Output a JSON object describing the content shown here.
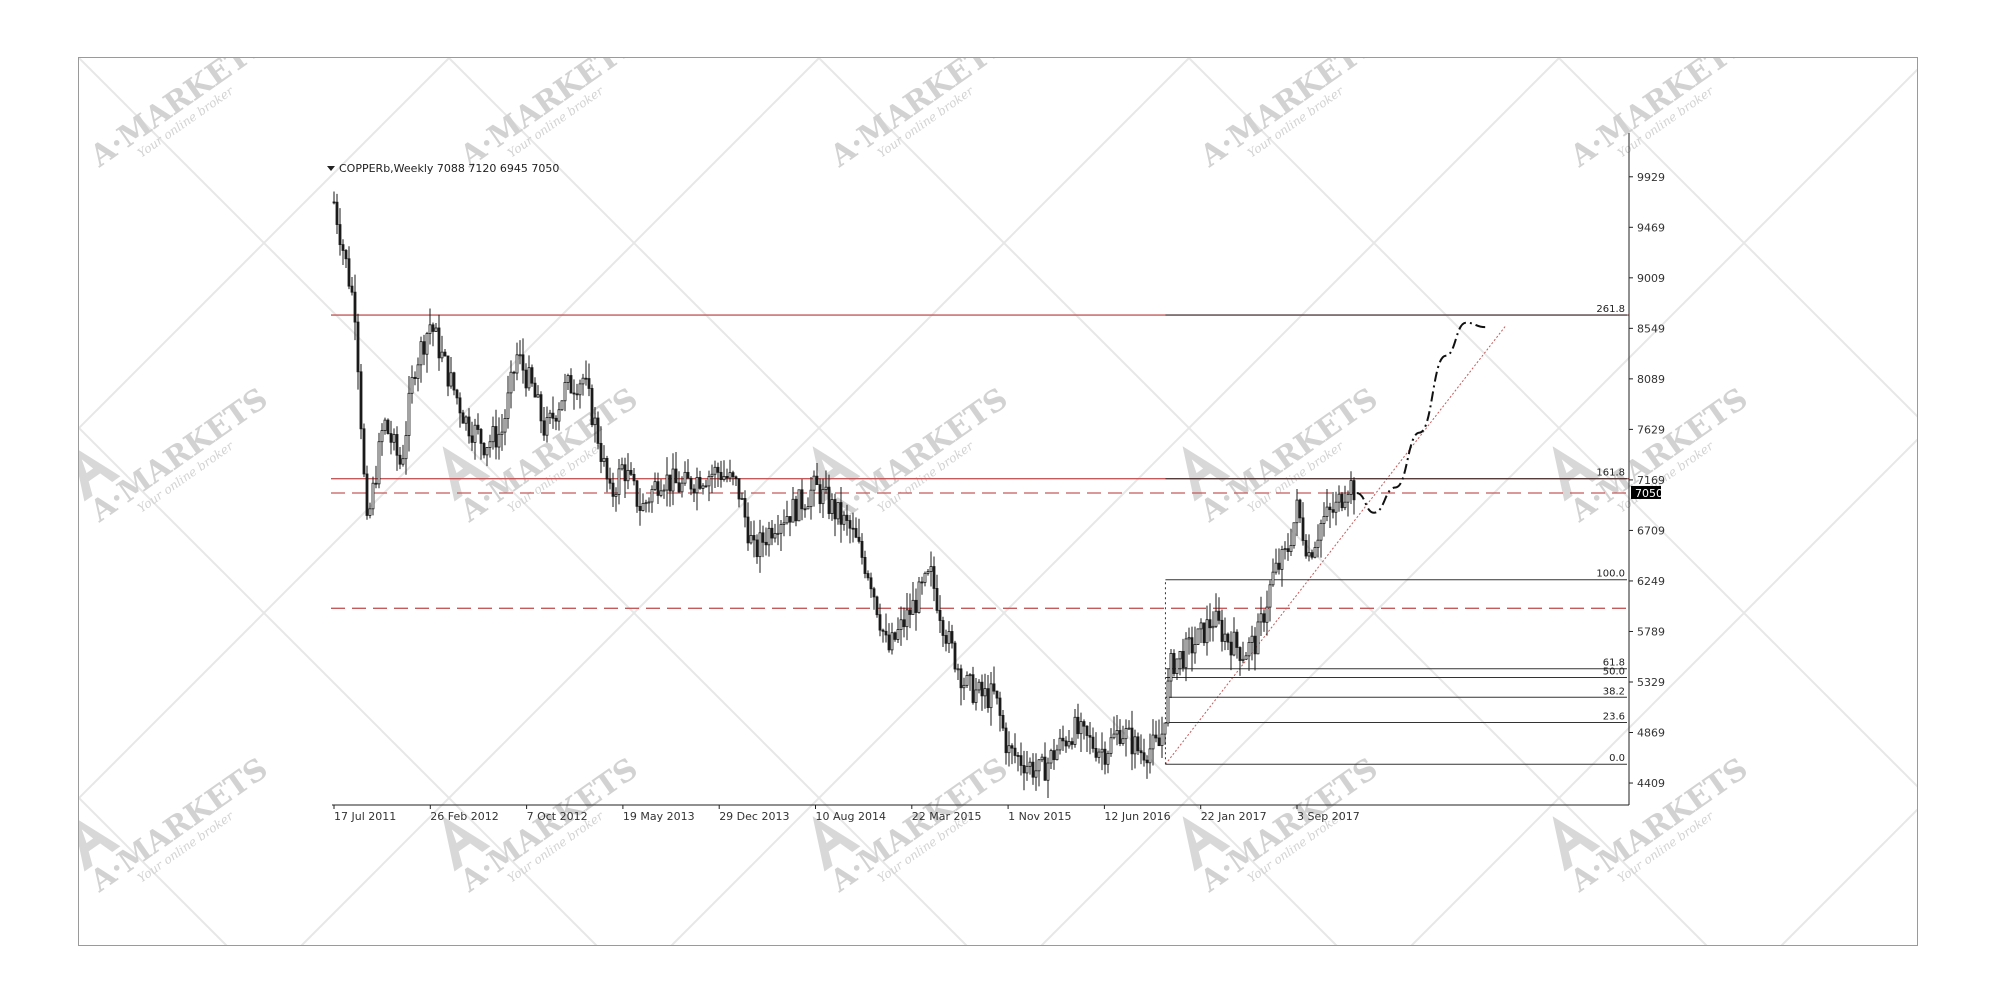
{
  "chart_data": {
    "type": "candlestick",
    "title": "COPPERb,Weekly  7088 7120 6945 7050",
    "instrument": "COPPERb",
    "timeframe": "Weekly",
    "last_bar": {
      "open": 7088,
      "high": 7120,
      "low": 6945,
      "close": 7050
    },
    "current_price": "7050",
    "x_tick_labels": [
      "17 Jul 2011",
      "26 Feb 2012",
      "7 Oct 2012",
      "19 May 2013",
      "29 Dec 2013",
      "10 Aug 2014",
      "22 Mar 2015",
      "1 Nov 2015",
      "12 Jun 2016",
      "22 Jan 2017",
      "3 Sep 2017"
    ],
    "y_tick_labels": [
      "9929",
      "9469",
      "9009",
      "8549",
      "8089",
      "7629",
      "7169",
      "6709",
      "6249",
      "5789",
      "5329",
      "4869",
      "4409"
    ],
    "ylim": [
      4300,
      10100
    ],
    "y_position": "right",
    "price_path": [
      {
        "date": "2011-07-17",
        "value": 9700
      },
      {
        "date": "2011-09-05",
        "value": 8700
      },
      {
        "date": "2011-10-01",
        "value": 6700
      },
      {
        "date": "2011-11-10",
        "value": 7700
      },
      {
        "date": "2011-12-20",
        "value": 7300
      },
      {
        "date": "2012-01-20",
        "value": 8200
      },
      {
        "date": "2012-02-26",
        "value": 8600
      },
      {
        "date": "2012-04-10",
        "value": 8100
      },
      {
        "date": "2012-05-20",
        "value": 7700
      },
      {
        "date": "2012-07-01",
        "value": 7500
      },
      {
        "date": "2012-08-10",
        "value": 7600
      },
      {
        "date": "2012-09-15",
        "value": 8300
      },
      {
        "date": "2012-10-20",
        "value": 8000
      },
      {
        "date": "2012-11-20",
        "value": 7600
      },
      {
        "date": "2013-01-05",
        "value": 8000
      },
      {
        "date": "2013-02-15",
        "value": 8100
      },
      {
        "date": "2013-03-20",
        "value": 7600
      },
      {
        "date": "2013-04-20",
        "value": 7000
      },
      {
        "date": "2013-05-19",
        "value": 7300
      },
      {
        "date": "2013-07-01",
        "value": 6900
      },
      {
        "date": "2013-08-15",
        "value": 7200
      },
      {
        "date": "2013-10-01",
        "value": 7100
      },
      {
        "date": "2013-11-15",
        "value": 7200
      },
      {
        "date": "2013-12-29",
        "value": 7250
      },
      {
        "date": "2014-02-10",
        "value": 7100
      },
      {
        "date": "2014-03-20",
        "value": 6500
      },
      {
        "date": "2014-05-10",
        "value": 6800
      },
      {
        "date": "2014-06-20",
        "value": 6900
      },
      {
        "date": "2014-08-10",
        "value": 7100
      },
      {
        "date": "2014-09-20",
        "value": 6900
      },
      {
        "date": "2014-11-01",
        "value": 6700
      },
      {
        "date": "2014-12-15",
        "value": 6300
      },
      {
        "date": "2015-01-25",
        "value": 5600
      },
      {
        "date": "2015-03-22",
        "value": 6000
      },
      {
        "date": "2015-05-05",
        "value": 6300
      },
      {
        "date": "2015-06-15",
        "value": 5700
      },
      {
        "date": "2015-07-25",
        "value": 5300
      },
      {
        "date": "2015-09-01",
        "value": 5200
      },
      {
        "date": "2015-10-01",
        "value": 5200
      },
      {
        "date": "2015-11-01",
        "value": 4700
      },
      {
        "date": "2015-12-10",
        "value": 4600
      },
      {
        "date": "2016-01-15",
        "value": 4500
      },
      {
        "date": "2016-02-20",
        "value": 4700
      },
      {
        "date": "2016-04-01",
        "value": 4900
      },
      {
        "date": "2016-05-01",
        "value": 4800
      },
      {
        "date": "2016-06-12",
        "value": 4700
      },
      {
        "date": "2016-07-20",
        "value": 4900
      },
      {
        "date": "2016-09-01",
        "value": 4700
      },
      {
        "date": "2016-10-20",
        "value": 4750
      },
      {
        "date": "2016-11-15",
        "value": 5500
      },
      {
        "date": "2016-12-20",
        "value": 5600
      },
      {
        "date": "2017-01-22",
        "value": 5750
      },
      {
        "date": "2017-02-20",
        "value": 5900
      },
      {
        "date": "2017-03-20",
        "value": 5750
      },
      {
        "date": "2017-05-01",
        "value": 5600
      },
      {
        "date": "2017-06-01",
        "value": 5700
      },
      {
        "date": "2017-07-10",
        "value": 6300
      },
      {
        "date": "2017-08-10",
        "value": 6500
      },
      {
        "date": "2017-09-03",
        "value": 6900
      },
      {
        "date": "2017-10-01",
        "value": 6500
      },
      {
        "date": "2017-11-01",
        "value": 6800
      },
      {
        "date": "2017-12-01",
        "value": 6900
      },
      {
        "date": "2018-01-01",
        "value": 7150
      },
      {
        "date": "2018-01-20",
        "value": 7050
      }
    ],
    "forecast_path": [
      {
        "date": "2018-01-20",
        "value": 7050
      },
      {
        "date": "2018-03-01",
        "value": 6870
      },
      {
        "date": "2018-04-20",
        "value": 7100
      },
      {
        "date": "2018-06-15",
        "value": 7600
      },
      {
        "date": "2018-08-15",
        "value": 8300
      },
      {
        "date": "2018-10-01",
        "value": 8600
      },
      {
        "date": "2018-11-15",
        "value": 8560
      }
    ],
    "horizontal_levels": [
      {
        "value": 8670,
        "color": "#c45a5a",
        "style": "solid"
      },
      {
        "value": 7180,
        "color": "#c45a5a",
        "style": "solid"
      },
      {
        "value": 7050,
        "color": "#c45a5a",
        "style": "dashed"
      },
      {
        "value": 6000,
        "color": "#c45a5a",
        "style": "dashed"
      }
    ],
    "fibonacci_levels": [
      {
        "label": "261.8",
        "value": 8670
      },
      {
        "label": "161.8",
        "value": 7180
      },
      {
        "label": "100.0",
        "value": 6260
      },
      {
        "label": "61.8",
        "value": 5450
      },
      {
        "label": "50.0",
        "value": 5370
      },
      {
        "label": "38.2",
        "value": 5190
      },
      {
        "label": "23.6",
        "value": 4960
      },
      {
        "label": "0.0",
        "value": 4580
      }
    ],
    "trendline": {
      "from": {
        "date": "2016-11-01",
        "value": 4580
      },
      "to": {
        "date": "2019-01-01",
        "value": 8570
      },
      "color": "#c45a5a",
      "style": "dotted"
    },
    "grid": false
  },
  "watermark": {
    "brand": "A·MARKETS",
    "tagline": "Your online broker"
  },
  "colors": {
    "candles": "#1a1a1a",
    "levels": "#c45a5a",
    "fib_lines": "#333333",
    "watermark": "#d4d4d4"
  }
}
